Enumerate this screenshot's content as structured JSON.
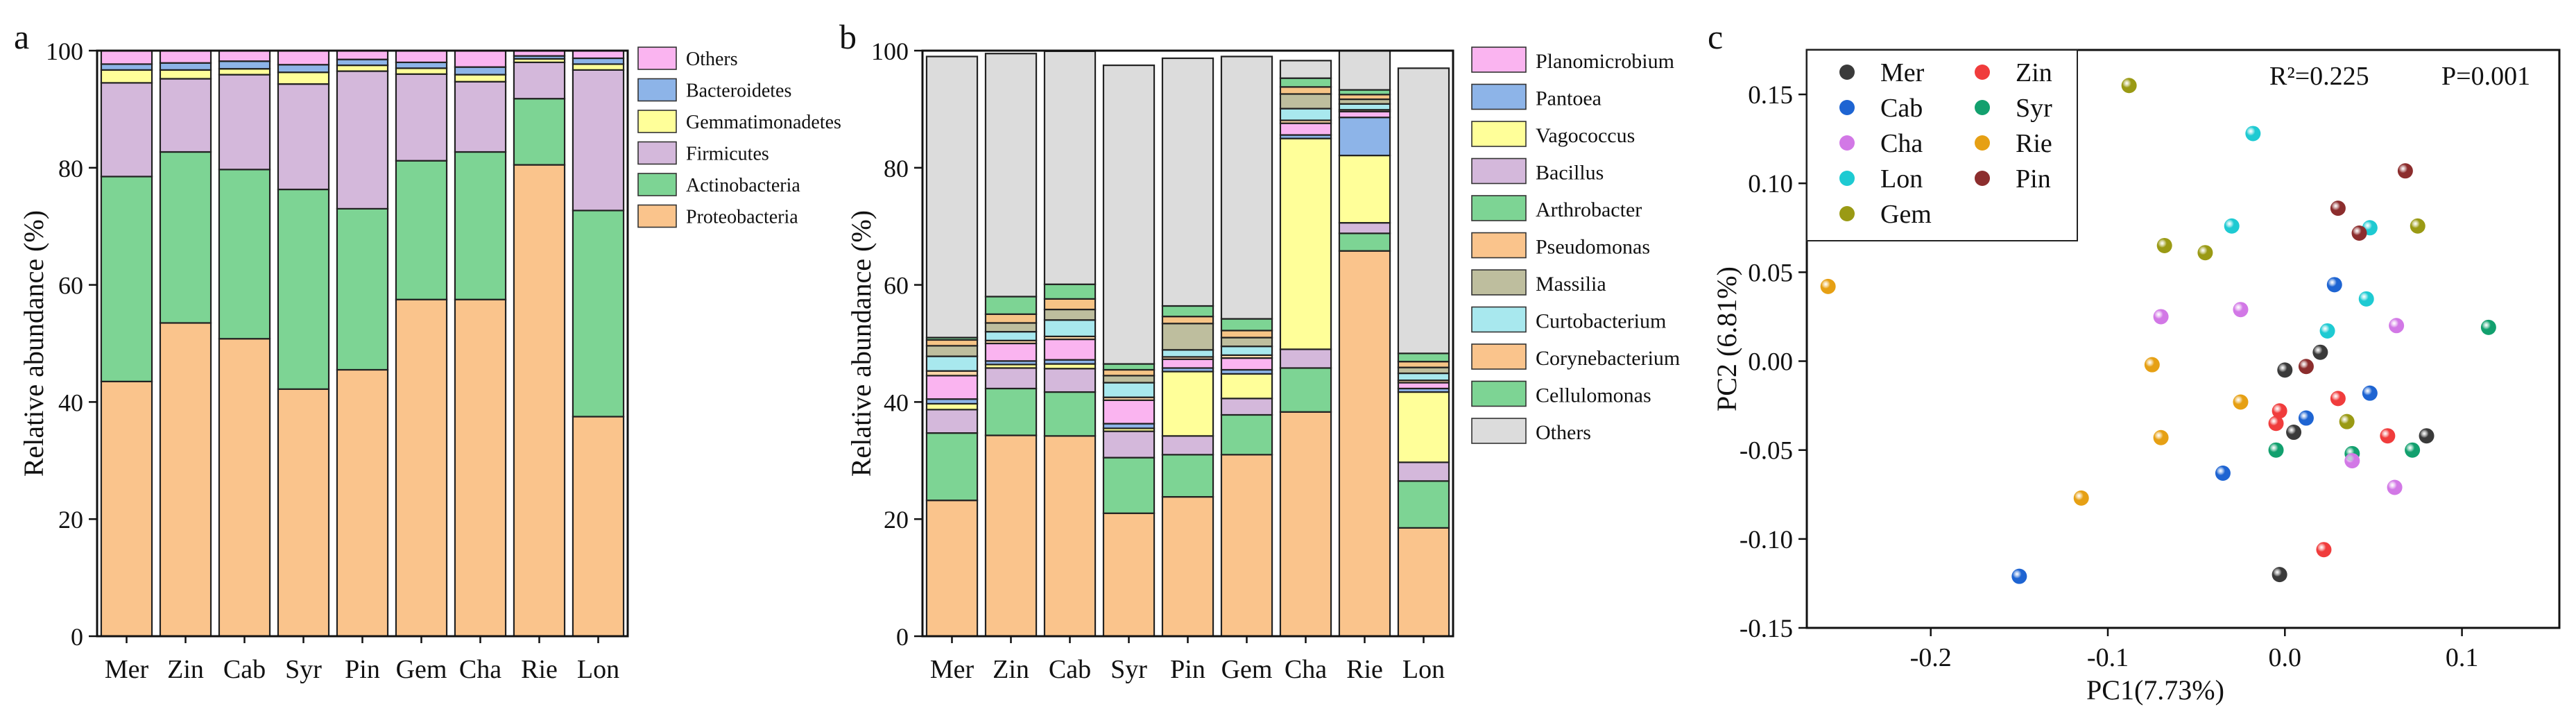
{
  "chart_data": [
    {
      "panel": "a",
      "type": "stacked-bar",
      "ylabel": "Relative abundance (%)",
      "ylim": [
        0,
        100
      ],
      "yticks": [
        0,
        20,
        40,
        60,
        80,
        100
      ],
      "categories": [
        "Mer",
        "Zin",
        "Cab",
        "Syr",
        "Pin",
        "Gem",
        "Cha",
        "Rie",
        "Lon"
      ],
      "legend_position": "right",
      "series": [
        {
          "name": "Proteobacteria",
          "color": "#FAC48C",
          "values": [
            43.5,
            53.5,
            50.8,
            42.2,
            45.5,
            57.5,
            57.5,
            80.5,
            37.5
          ]
        },
        {
          "name": "Actinobacteria",
          "color": "#7DD494",
          "values": [
            35.0,
            29.2,
            28.9,
            34.1,
            27.5,
            23.7,
            25.2,
            11.3,
            35.2
          ]
        },
        {
          "name": "Firmicutes",
          "color": "#D4B8DB",
          "values": [
            16.0,
            12.5,
            16.2,
            18.0,
            23.5,
            14.8,
            12.0,
            6.2,
            24.0
          ]
        },
        {
          "name": "Gemmatimonadetes",
          "color": "#FFFF99",
          "values": [
            2.2,
            1.5,
            1.0,
            2.0,
            1.0,
            1.0,
            1.2,
            0.6,
            1.0
          ]
        },
        {
          "name": "Bacteroidetes",
          "color": "#8DB4E8",
          "values": [
            1.0,
            1.2,
            1.3,
            1.3,
            1.0,
            1.0,
            1.3,
            0.5,
            1.0
          ]
        },
        {
          "name": "Others",
          "color": "#FAB4F0",
          "values": [
            2.3,
            2.1,
            1.8,
            2.4,
            1.5,
            2.0,
            2.8,
            0.9,
            1.3
          ]
        }
      ],
      "legend": [
        "Others",
        "Bacteroidetes",
        "Gemmatimonadetes",
        "Firmicutes",
        "Actinobacteria",
        "Proteobacteria"
      ]
    },
    {
      "panel": "b",
      "type": "stacked-bar",
      "ylabel": "Relative abundance (%)",
      "ylim": [
        0,
        100
      ],
      "yticks": [
        0,
        20,
        40,
        60,
        80,
        100
      ],
      "categories": [
        "Mer",
        "Zin",
        "Cab",
        "Syr",
        "Pin",
        "Gem",
        "Cha",
        "Rie",
        "Lon"
      ],
      "legend_position": "right",
      "series": [
        {
          "name": "Cellulomonas",
          "color": "#7DD494",
          "values": [
            11.5,
            8.0,
            7.5,
            9.5,
            7.2,
            6.8,
            7.5,
            3.0,
            8.0
          ]
        },
        {
          "name": "Corynebacterium",
          "color": "#FAC48C",
          "values": [
            0.8,
            0.5,
            0.5,
            0.5,
            0.4,
            0.5,
            0.5,
            0.3,
            0.4
          ]
        },
        {
          "name": "Curtobacterium",
          "color": "#A8E8EE",
          "values": [
            0.5,
            0.4,
            0.5,
            0.5,
            0.5,
            0.4,
            0.4,
            0.3,
            0.4
          ]
        },
        {
          "name": "Massilia",
          "color": "#BEBE9E",
          "values": [
            0.4,
            0.3,
            0.3,
            0.4,
            0.3,
            0.3,
            0.3,
            0.3,
            0.3
          ]
        },
        {
          "name": "Pseudomonas",
          "color": "#FAC48C",
          "values": [
            23.2,
            34.3,
            34.2,
            21.0,
            23.8,
            31.0,
            38.3,
            65.8,
            18.5
          ]
        }
      ]
    }
  ]
}
